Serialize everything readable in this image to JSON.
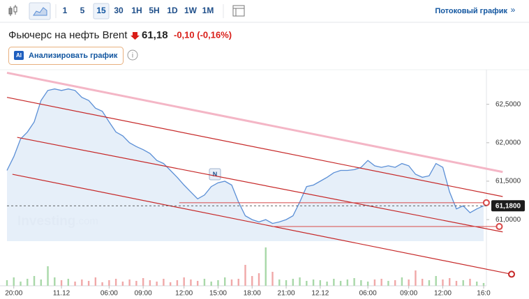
{
  "toolbar": {
    "intervals": [
      "1",
      "5",
      "15",
      "30",
      "1H",
      "5H",
      "1D",
      "1W",
      "1M"
    ],
    "selected_interval_index": 2,
    "streaming_link": "Потоковый график",
    "streaming_arrow": "»"
  },
  "header": {
    "title": "Фьючерс на нефть Brent",
    "price": "61,18",
    "change": "-0,10 (-0,16%)",
    "analyze_badge": "AI",
    "analyze_label": "Анализировать график",
    "info_icon": "i"
  },
  "chart_data": {
    "type": "area",
    "watermark": "Investing",
    "watermark_suffix": ".com",
    "news_marker": "N",
    "x": [
      0,
      1,
      2,
      3,
      4,
      5,
      6,
      7,
      8,
      9,
      10,
      11,
      12,
      13,
      14,
      15,
      16,
      17,
      18,
      19,
      20,
      21,
      22,
      23,
      24,
      25,
      26,
      27,
      28,
      29,
      30,
      31,
      32,
      33,
      34,
      35,
      36,
      37,
      38,
      39,
      40,
      41,
      42,
      43,
      44,
      45,
      46,
      47,
      48,
      49,
      50,
      51,
      52,
      53,
      54,
      55,
      56,
      57,
      58,
      59,
      60,
      61,
      62,
      63,
      64,
      65,
      66,
      67,
      68,
      69,
      70
    ],
    "series": [
      {
        "name": "Brent",
        "color": "#5b8fd6",
        "values": [
          61.64,
          61.82,
          62.05,
          62.14,
          62.27,
          62.55,
          62.68,
          62.7,
          62.68,
          62.7,
          62.68,
          62.59,
          62.55,
          62.45,
          62.41,
          62.27,
          62.14,
          62.09,
          62.0,
          61.95,
          61.91,
          61.86,
          61.77,
          61.73,
          61.64,
          61.55,
          61.45,
          61.36,
          61.27,
          61.32,
          61.43,
          61.48,
          61.5,
          61.45,
          61.23,
          61.05,
          61.0,
          60.97,
          61.0,
          60.95,
          60.97,
          61.0,
          61.05,
          61.23,
          61.43,
          61.45,
          61.5,
          61.55,
          61.61,
          61.64,
          61.64,
          61.65,
          61.68,
          61.77,
          61.7,
          61.68,
          61.7,
          61.68,
          61.73,
          61.7,
          61.59,
          61.55,
          61.57,
          61.73,
          61.68,
          61.36,
          61.14,
          61.18,
          61.09,
          61.14,
          61.18
        ]
      }
    ],
    "volume": {
      "up_color": "#a8d8a8",
      "down_color": "#f0a8a8",
      "ylim": [
        0,
        60
      ],
      "values": [
        8,
        12,
        6,
        10,
        14,
        9,
        28,
        12,
        8,
        10,
        6,
        9,
        7,
        12,
        5,
        8,
        10,
        6,
        9,
        7,
        11,
        8,
        6,
        10,
        5,
        8,
        12,
        9,
        7,
        10,
        6,
        8,
        12,
        9,
        10,
        30,
        14,
        18,
        55,
        20,
        9,
        8,
        10,
        12,
        7,
        9,
        8,
        6,
        10,
        7,
        9,
        11,
        8,
        6,
        9,
        10,
        7,
        8,
        12,
        9,
        22,
        10,
        8,
        14,
        9,
        11,
        7,
        8,
        10,
        6,
        4
      ]
    },
    "xlim": [
      0,
      70
    ],
    "xticks": [
      {
        "value": 1,
        "label": "20:00"
      },
      {
        "value": 8,
        "label": "11.12"
      },
      {
        "value": 15,
        "label": "06:00"
      },
      {
        "value": 20,
        "label": "09:00"
      },
      {
        "value": 26,
        "label": "12:00"
      },
      {
        "value": 31,
        "label": "15:00"
      },
      {
        "value": 36,
        "label": "18:00"
      },
      {
        "value": 41,
        "label": "21:00"
      },
      {
        "value": 46,
        "label": "12.12"
      },
      {
        "value": 53,
        "label": "06:00"
      },
      {
        "value": 59,
        "label": "09:00"
      },
      {
        "value": 64,
        "label": "12:00"
      },
      {
        "value": 70,
        "label": "16:0"
      }
    ],
    "ylim": [
      60.72,
      62.95
    ],
    "yticks": [
      {
        "value": 61,
        "label": "61,0000"
      },
      {
        "value": 61.5,
        "label": "61,5000"
      },
      {
        "value": 62,
        "label": "62,0000"
      },
      {
        "value": 62.5,
        "label": "62,5000"
      }
    ],
    "last_price": {
      "value": 61.18,
      "label": "61,1800"
    },
    "drawings": [
      {
        "color": "#f4b6c6",
        "width": 3,
        "x": [
          0,
          72.8
        ],
        "y": [
          62.91,
          61.62
        ],
        "end_marker": false
      },
      {
        "color": "#c62828",
        "width": 1.2,
        "x": [
          0,
          72.8
        ],
        "y": [
          62.59,
          61.3
        ],
        "end_marker": false
      },
      {
        "color": "#c62828",
        "width": 1.2,
        "x": [
          1.5,
          72.8
        ],
        "y": [
          62.07,
          60.84
        ],
        "end_marker": false
      },
      {
        "color": "#c62828",
        "width": 1.2,
        "x": [
          0.8,
          74.1
        ],
        "y": [
          61.59,
          60.29
        ],
        "end_marker": true
      },
      {
        "color": "#d84848",
        "width": 1,
        "x": [
          25.3,
          70.4
        ],
        "y": [
          61.22,
          61.22
        ],
        "end_marker": true
      },
      {
        "color": "#d84848",
        "width": 1,
        "x": [
          38.9,
          72.3
        ],
        "y": [
          60.91,
          60.91
        ],
        "end_marker": true
      }
    ]
  }
}
